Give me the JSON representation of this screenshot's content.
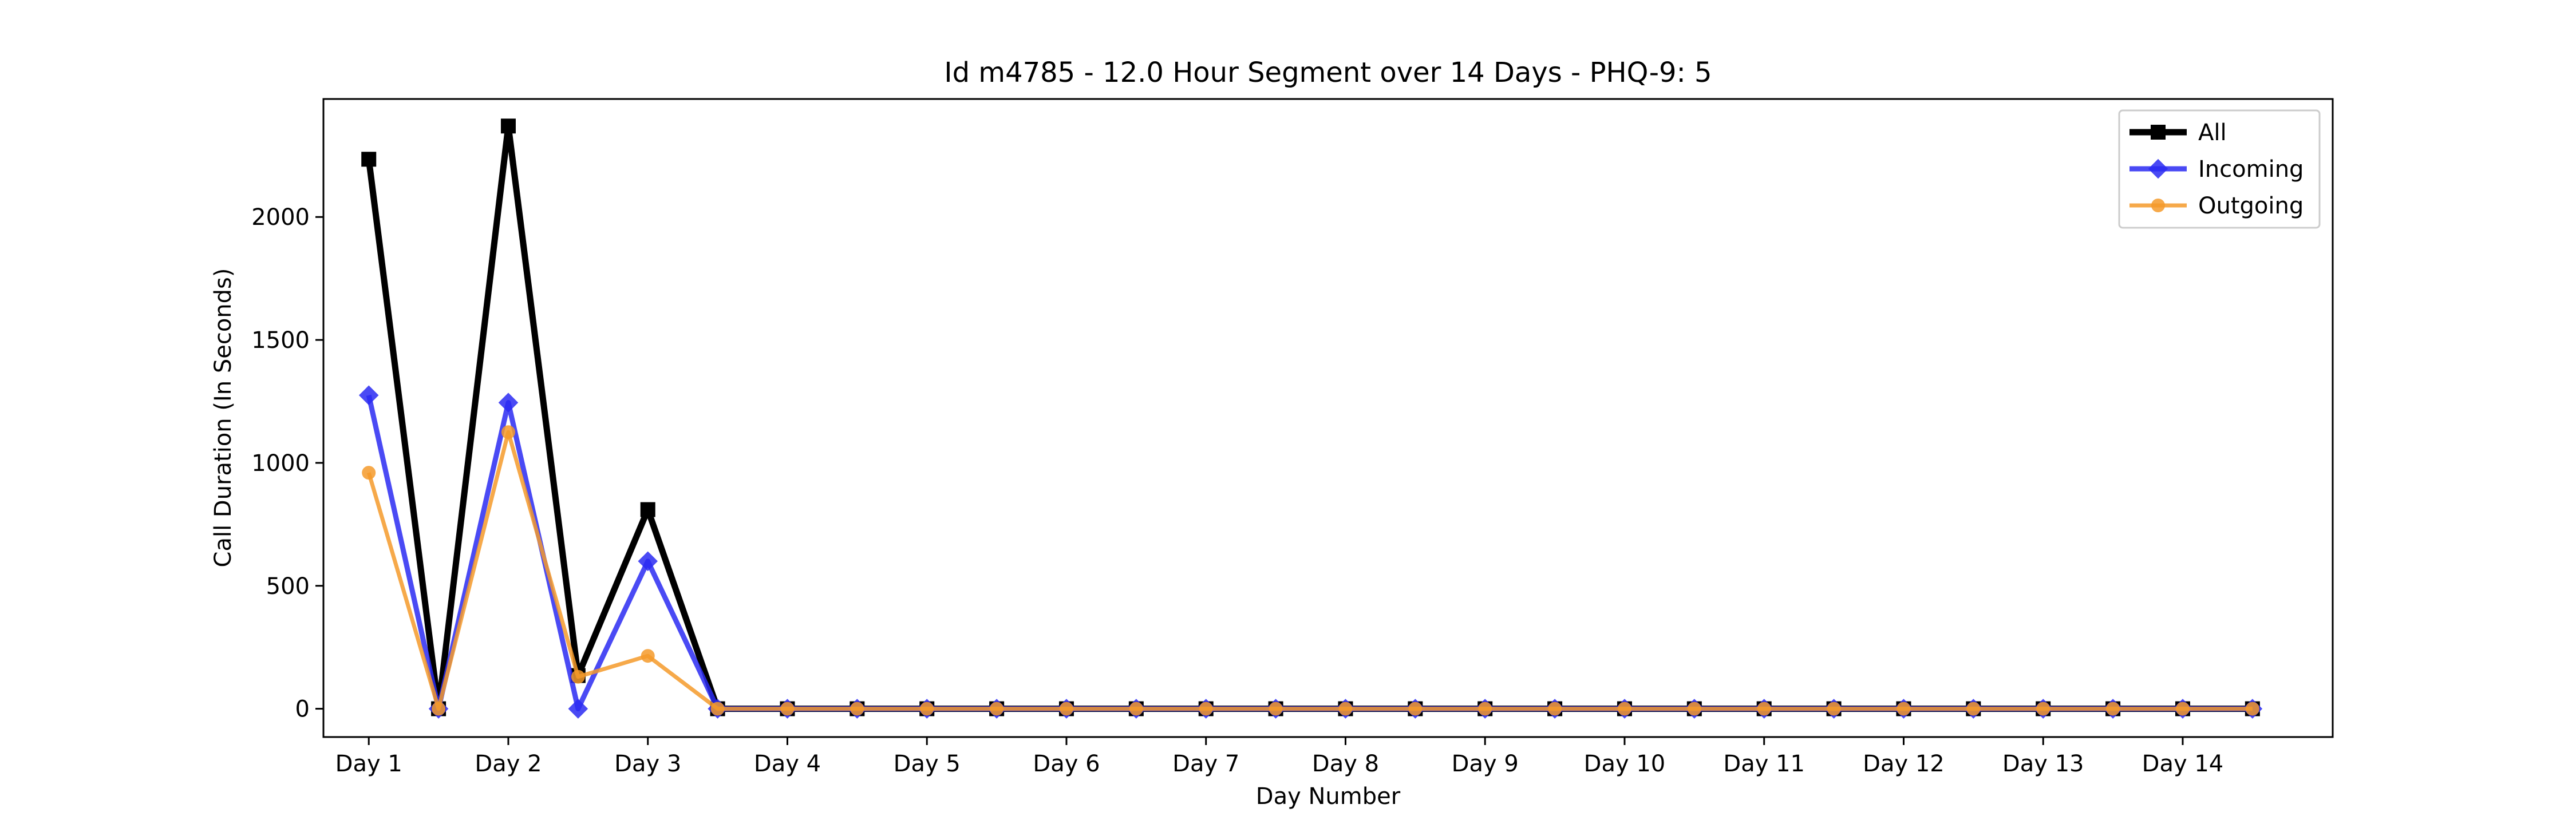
{
  "chart_data": {
    "type": "line",
    "title": "Id m4785 - 12.0 Hour Segment over 14 Days - PHQ-9: 5",
    "xlabel": "Day Number",
    "ylabel": "Call Duration (In Seconds)",
    "x_tick_labels": [
      "Day 1",
      "Day 2",
      "Day 3",
      "Day 4",
      "Day 5",
      "Day 6",
      "Day 7",
      "Day 8",
      "Day 9",
      "Day 10",
      "Day 11",
      "Day 12",
      "Day 13",
      "Day 14"
    ],
    "y_ticks": [
      0,
      500,
      1000,
      1500,
      2000
    ],
    "ylim": [
      -115,
      2480
    ],
    "xlim": [
      -0.65,
      28.15
    ],
    "grid": false,
    "legend_position": "top-right",
    "series": [
      {
        "name": "All",
        "color": "#000000",
        "marker": "square",
        "values": [
          2235,
          0,
          2370,
          135,
          810,
          0,
          0,
          0,
          0,
          0,
          0,
          0,
          0,
          0,
          0,
          0,
          0,
          0,
          0,
          0,
          0,
          0,
          0,
          0,
          0,
          0,
          0,
          0
        ]
      },
      {
        "name": "Incoming",
        "color": "#2a2af2",
        "marker": "diamond",
        "values": [
          1275,
          0,
          1245,
          0,
          600,
          0,
          0,
          0,
          0,
          0,
          0,
          0,
          0,
          0,
          0,
          0,
          0,
          0,
          0,
          0,
          0,
          0,
          0,
          0,
          0,
          0,
          0,
          0
        ]
      },
      {
        "name": "Outgoing",
        "color": "#f59a2a",
        "marker": "circle",
        "values": [
          960,
          0,
          1125,
          130,
          215,
          0,
          0,
          0,
          0,
          0,
          0,
          0,
          0,
          0,
          0,
          0,
          0,
          0,
          0,
          0,
          0,
          0,
          0,
          0,
          0,
          0,
          0,
          0
        ]
      }
    ]
  }
}
